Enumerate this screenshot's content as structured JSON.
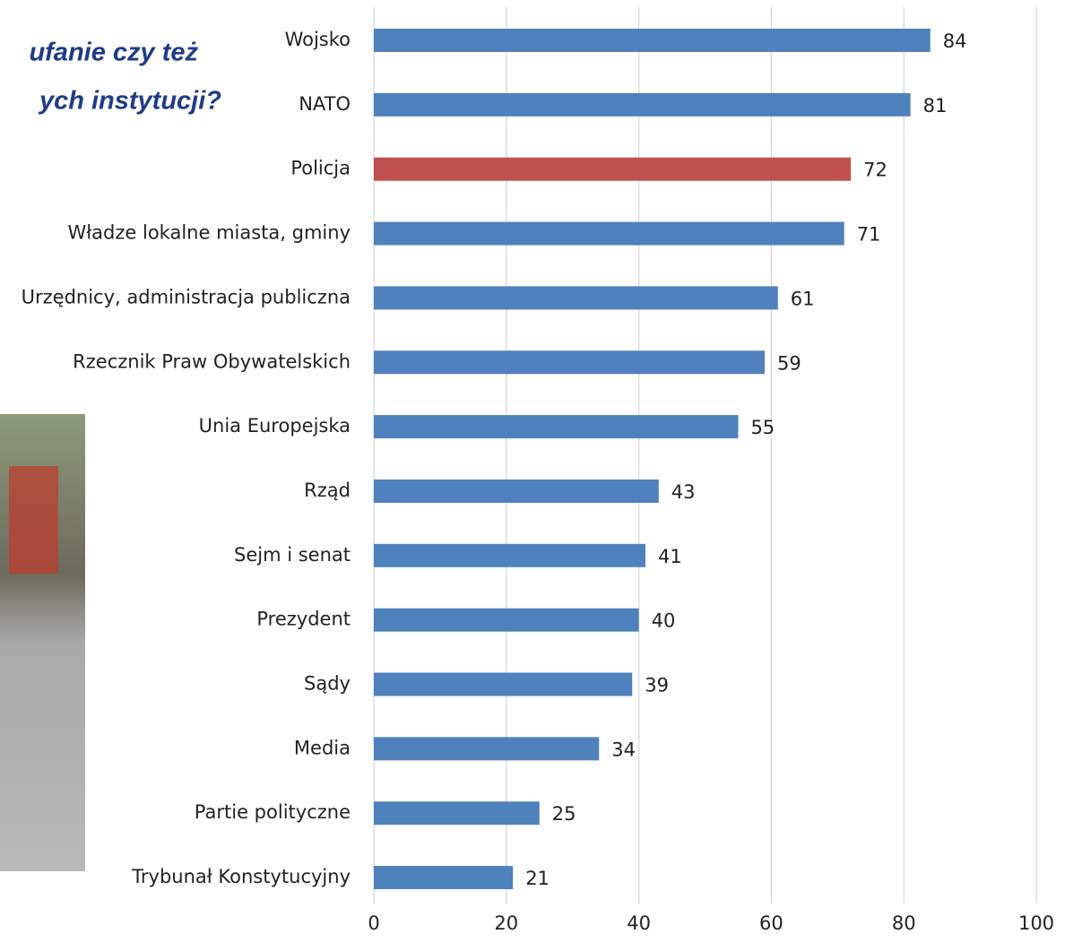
{
  "chart_data": {
    "type": "bar",
    "orientation": "horizontal",
    "title_lines": [
      "ufanie czy też",
      "ych instytucji?"
    ],
    "categories": [
      "Wojsko",
      "NATO",
      "Policja",
      "Władze lokalne miasta, gminy",
      "Urzędnicy, administracja publiczna",
      "Rzecznik Praw Obywatelskich",
      "Unia Europejska",
      "Rząd",
      "Sejm i senat",
      "Prezydent",
      "Sądy",
      "Media",
      "Partie polityczne",
      "Trybunał Konstytucyjny"
    ],
    "values": [
      84,
      81,
      72,
      71,
      61,
      59,
      55,
      43,
      41,
      40,
      39,
      34,
      25,
      21
    ],
    "colors": [
      "#4f81bd",
      "#4f81bd",
      "#c0504d",
      "#4f81bd",
      "#4f81bd",
      "#4f81bd",
      "#4f81bd",
      "#4f81bd",
      "#4f81bd",
      "#4f81bd",
      "#4f81bd",
      "#4f81bd",
      "#4f81bd",
      "#4f81bd"
    ],
    "xlim": [
      0,
      100
    ],
    "xticks": [
      0,
      20,
      40,
      60,
      80,
      100
    ],
    "grid": true
  }
}
